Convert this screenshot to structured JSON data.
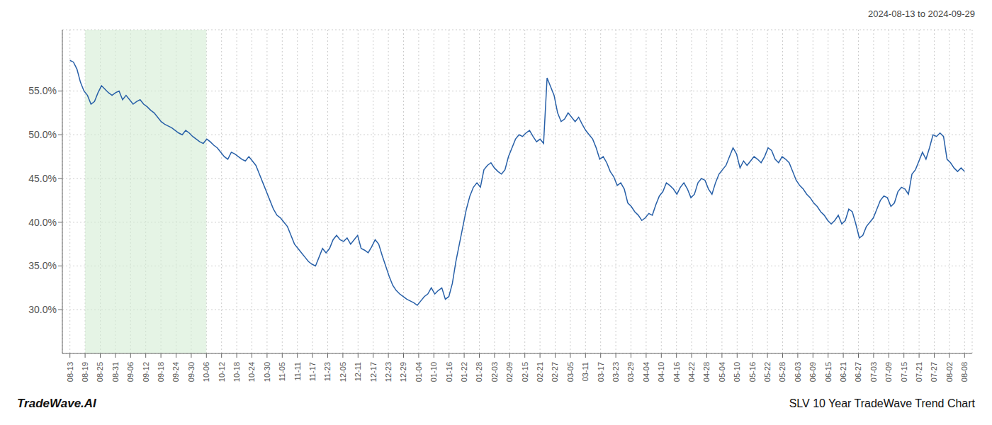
{
  "chart_data": {
    "type": "line",
    "title": "SLV 10 Year TradeWave Trend Chart",
    "subtitle": "2024-08-13 to 2024-09-29",
    "annotations": [
      "TradeWave.AI"
    ],
    "color": "#2860a8",
    "grid": true,
    "ylim": [
      25.0,
      62.0
    ],
    "yticks": [
      {
        "value": 30.0,
        "label": "30.0%"
      },
      {
        "value": 35.0,
        "label": "35.0%"
      },
      {
        "value": 40.0,
        "label": "40.0%"
      },
      {
        "value": 45.0,
        "label": "45.0%"
      },
      {
        "value": 50.0,
        "label": "50.0%"
      },
      {
        "value": 55.0,
        "label": "55.0%"
      }
    ],
    "xlim": [
      -0.5,
      59.5
    ],
    "xticks": [
      {
        "value": 0,
        "label": "08-13"
      },
      {
        "value": 1,
        "label": "08-19"
      },
      {
        "value": 2,
        "label": "08-25"
      },
      {
        "value": 3,
        "label": "08-31"
      },
      {
        "value": 4,
        "label": "09-06"
      },
      {
        "value": 5,
        "label": "09-12"
      },
      {
        "value": 6,
        "label": "09-18"
      },
      {
        "value": 7,
        "label": "09-24"
      },
      {
        "value": 8,
        "label": "09-30"
      },
      {
        "value": 9,
        "label": "10-06"
      },
      {
        "value": 10,
        "label": "10-12"
      },
      {
        "value": 11,
        "label": "10-18"
      },
      {
        "value": 12,
        "label": "10-24"
      },
      {
        "value": 13,
        "label": "10-30"
      },
      {
        "value": 14,
        "label": "11-05"
      },
      {
        "value": 15,
        "label": "11-11"
      },
      {
        "value": 16,
        "label": "11-17"
      },
      {
        "value": 17,
        "label": "11-23"
      },
      {
        "value": 18,
        "label": "12-05"
      },
      {
        "value": 19,
        "label": "12-11"
      },
      {
        "value": 20,
        "label": "12-17"
      },
      {
        "value": 21,
        "label": "12-23"
      },
      {
        "value": 22,
        "label": "12-29"
      },
      {
        "value": 23,
        "label": "01-04"
      },
      {
        "value": 24,
        "label": "01-10"
      },
      {
        "value": 25,
        "label": "01-16"
      },
      {
        "value": 26,
        "label": "01-22"
      },
      {
        "value": 27,
        "label": "01-28"
      },
      {
        "value": 28,
        "label": "02-03"
      },
      {
        "value": 29,
        "label": "02-09"
      },
      {
        "value": 30,
        "label": "02-15"
      },
      {
        "value": 31,
        "label": "02-21"
      },
      {
        "value": 32,
        "label": "02-27"
      },
      {
        "value": 33,
        "label": "03-05"
      },
      {
        "value": 34,
        "label": "03-11"
      },
      {
        "value": 35,
        "label": "03-17"
      },
      {
        "value": 36,
        "label": "03-23"
      },
      {
        "value": 37,
        "label": "03-29"
      },
      {
        "value": 38,
        "label": "04-04"
      },
      {
        "value": 39,
        "label": "04-10"
      },
      {
        "value": 40,
        "label": "04-16"
      },
      {
        "value": 41,
        "label": "04-22"
      },
      {
        "value": 42,
        "label": "04-28"
      },
      {
        "value": 43,
        "label": "05-04"
      },
      {
        "value": 44,
        "label": "05-10"
      },
      {
        "value": 45,
        "label": "05-16"
      },
      {
        "value": 46,
        "label": "05-22"
      },
      {
        "value": 47,
        "label": "05-28"
      },
      {
        "value": 48,
        "label": "06-03"
      },
      {
        "value": 49,
        "label": "06-09"
      },
      {
        "value": 50,
        "label": "06-15"
      },
      {
        "value": 51,
        "label": "06-21"
      },
      {
        "value": 52,
        "label": "06-27"
      },
      {
        "value": 53,
        "label": "07-03"
      },
      {
        "value": 54,
        "label": "07-09"
      },
      {
        "value": 55,
        "label": "07-15"
      },
      {
        "value": 56,
        "label": "07-21"
      },
      {
        "value": 57,
        "label": "07-27"
      },
      {
        "value": 58,
        "label": "08-02"
      },
      {
        "value": 59,
        "label": "08-08"
      }
    ],
    "shaded_region": {
      "start": 1,
      "end": 9,
      "color": "#d4ecd4"
    },
    "values": [
      58.5,
      58.3,
      57.5,
      56.0,
      55.0,
      54.5,
      53.5,
      53.8,
      54.8,
      55.6,
      55.2,
      54.8,
      54.5,
      54.8,
      55.0,
      54.0,
      54.5,
      54.0,
      53.5,
      53.8,
      54.0,
      53.5,
      53.2,
      52.8,
      52.5,
      52.0,
      51.5,
      51.2,
      51.0,
      50.8,
      50.5,
      50.2,
      50.0,
      50.5,
      50.2,
      49.8,
      49.5,
      49.2,
      49.0,
      49.5,
      49.2,
      48.8,
      48.5,
      48.0,
      47.5,
      47.2,
      48.0,
      47.8,
      47.5,
      47.2,
      47.0,
      47.5,
      47.0,
      46.5,
      45.5,
      44.5,
      43.5,
      42.5,
      41.5,
      40.8,
      40.5,
      40.0,
      39.5,
      38.5,
      37.5,
      37.0,
      36.5,
      36.0,
      35.5,
      35.2,
      35.0,
      36.0,
      37.0,
      36.5,
      37.0,
      38.0,
      38.5,
      38.0,
      37.8,
      38.2,
      37.5,
      38.0,
      38.5,
      37.0,
      36.8,
      36.5,
      37.2,
      38.0,
      37.5,
      36.2,
      35.0,
      33.8,
      32.8,
      32.2,
      31.8,
      31.5,
      31.2,
      31.0,
      30.8,
      30.5,
      31.0,
      31.5,
      31.8,
      32.5,
      31.8,
      32.2,
      32.5,
      31.2,
      31.5,
      33.0,
      35.5,
      37.5,
      39.5,
      41.5,
      43.0,
      44.0,
      44.5,
      44.0,
      46.0,
      46.5,
      46.8,
      46.2,
      45.8,
      45.5,
      46.0,
      47.5,
      48.5,
      49.5,
      50.0,
      49.8,
      50.2,
      50.5,
      49.8,
      49.2,
      49.5,
      49.0,
      56.5,
      55.5,
      54.5,
      52.5,
      51.5,
      51.8,
      52.5,
      52.0,
      51.5,
      52.0,
      51.2,
      50.5,
      50.0,
      49.5,
      48.5,
      47.2,
      47.5,
      46.8,
      45.8,
      45.2,
      44.2,
      44.5,
      43.8,
      42.2,
      41.8,
      41.2,
      40.8,
      40.2,
      40.5,
      41.0,
      40.8,
      42.0,
      43.0,
      43.5,
      44.5,
      44.2,
      43.8,
      43.2,
      44.0,
      44.5,
      43.8,
      42.8,
      43.2,
      44.5,
      45.0,
      44.8,
      43.8,
      43.2,
      44.5,
      45.5,
      46.0,
      46.5,
      47.5,
      48.5,
      47.8,
      46.2,
      47.0,
      46.5,
      47.0,
      47.5,
      47.2,
      46.8,
      47.5,
      48.5,
      48.2,
      47.2,
      46.8,
      47.5,
      47.2,
      46.8,
      45.8,
      44.8,
      44.2,
      43.8,
      43.2,
      42.8,
      42.2,
      41.8,
      41.2,
      40.8,
      40.2,
      39.8,
      40.2,
      40.8,
      39.8,
      40.2,
      41.5,
      41.2,
      39.8,
      38.2,
      38.5,
      39.5,
      40.0,
      40.5,
      41.5,
      42.5,
      43.0,
      42.8,
      41.8,
      42.2,
      43.5,
      44.0,
      43.8,
      43.2,
      45.5,
      46.0,
      47.0,
      48.0,
      47.2,
      48.5,
      50.0,
      49.8,
      50.2,
      49.8,
      47.2,
      46.8,
      46.2,
      45.8,
      46.2,
      45.8
    ]
  }
}
